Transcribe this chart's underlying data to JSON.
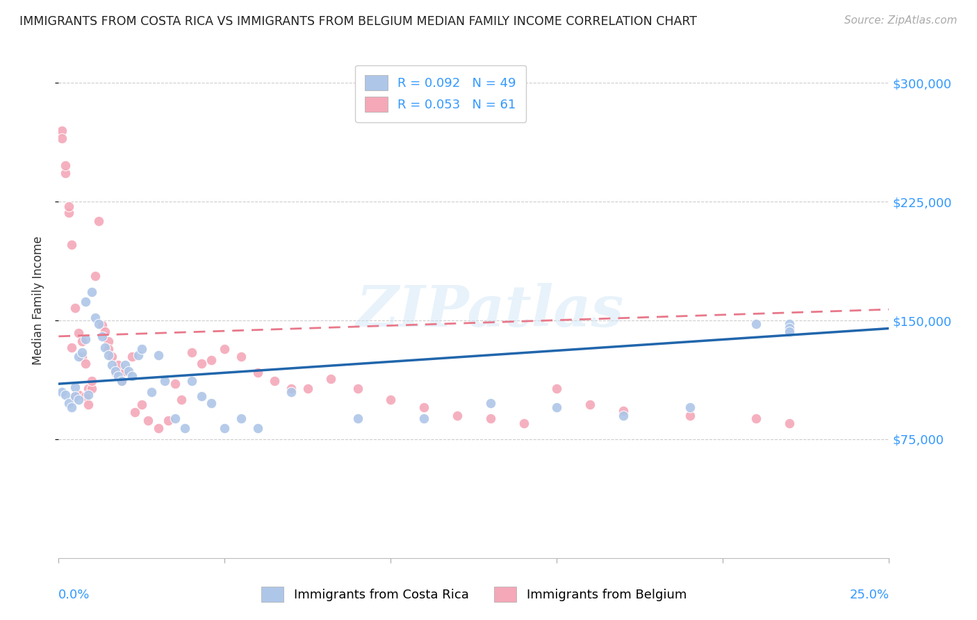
{
  "title": "IMMIGRANTS FROM COSTA RICA VS IMMIGRANTS FROM BELGIUM MEDIAN FAMILY INCOME CORRELATION CHART",
  "source": "Source: ZipAtlas.com",
  "ylabel": "Median Family Income",
  "ytick_labels": [
    "$75,000",
    "$150,000",
    "$225,000",
    "$300,000"
  ],
  "ytick_vals": [
    75000,
    150000,
    225000,
    300000
  ],
  "xlim": [
    0.0,
    0.25
  ],
  "ylim": [
    0,
    325000
  ],
  "color_cr": "#aec6e8",
  "color_be": "#f4a8b8",
  "color_cr_line": "#2166ac",
  "color_be_line": "#e8788a",
  "color_ytick": "#4ca3dd",
  "color_xtick": "#4ca3dd",
  "watermark": "ZIPatlas",
  "cr_x": [
    0.001,
    0.002,
    0.003,
    0.004,
    0.005,
    0.005,
    0.006,
    0.006,
    0.007,
    0.008,
    0.008,
    0.009,
    0.01,
    0.011,
    0.012,
    0.013,
    0.014,
    0.015,
    0.016,
    0.017,
    0.018,
    0.019,
    0.02,
    0.021,
    0.022,
    0.024,
    0.025,
    0.028,
    0.03,
    0.032,
    0.035,
    0.038,
    0.04,
    0.043,
    0.046,
    0.05,
    0.055,
    0.06,
    0.07,
    0.09,
    0.11,
    0.13,
    0.15,
    0.17,
    0.19,
    0.21,
    0.22,
    0.22,
    0.22
  ],
  "cr_y": [
    105000,
    103000,
    98000,
    95000,
    108000,
    102000,
    127000,
    100000,
    130000,
    138000,
    162000,
    103000,
    168000,
    152000,
    148000,
    140000,
    133000,
    128000,
    122000,
    118000,
    115000,
    112000,
    122000,
    118000,
    115000,
    128000,
    132000,
    105000,
    128000,
    112000,
    88000,
    82000,
    112000,
    102000,
    98000,
    82000,
    88000,
    82000,
    105000,
    88000,
    88000,
    98000,
    95000,
    90000,
    95000,
    148000,
    148000,
    145000,
    143000
  ],
  "be_x": [
    0.001,
    0.001,
    0.002,
    0.002,
    0.003,
    0.003,
    0.004,
    0.004,
    0.005,
    0.005,
    0.006,
    0.006,
    0.007,
    0.007,
    0.008,
    0.008,
    0.009,
    0.009,
    0.01,
    0.01,
    0.011,
    0.012,
    0.013,
    0.014,
    0.015,
    0.015,
    0.016,
    0.017,
    0.018,
    0.019,
    0.02,
    0.022,
    0.023,
    0.025,
    0.027,
    0.03,
    0.033,
    0.035,
    0.037,
    0.04,
    0.043,
    0.046,
    0.05,
    0.055,
    0.06,
    0.065,
    0.07,
    0.075,
    0.082,
    0.09,
    0.1,
    0.11,
    0.12,
    0.13,
    0.14,
    0.15,
    0.16,
    0.17,
    0.19,
    0.21,
    0.22
  ],
  "be_y": [
    270000,
    265000,
    243000,
    248000,
    218000,
    222000,
    133000,
    198000,
    158000,
    102000,
    103000,
    142000,
    137000,
    127000,
    123000,
    102000,
    97000,
    107000,
    107000,
    112000,
    178000,
    213000,
    147000,
    143000,
    137000,
    132000,
    127000,
    117000,
    122000,
    112000,
    118000,
    127000,
    92000,
    97000,
    87000,
    82000,
    87000,
    110000,
    100000,
    130000,
    123000,
    125000,
    132000,
    127000,
    117000,
    112000,
    107000,
    107000,
    113000,
    107000,
    100000,
    95000,
    90000,
    88000,
    85000,
    107000,
    97000,
    93000,
    90000,
    88000,
    85000
  ]
}
